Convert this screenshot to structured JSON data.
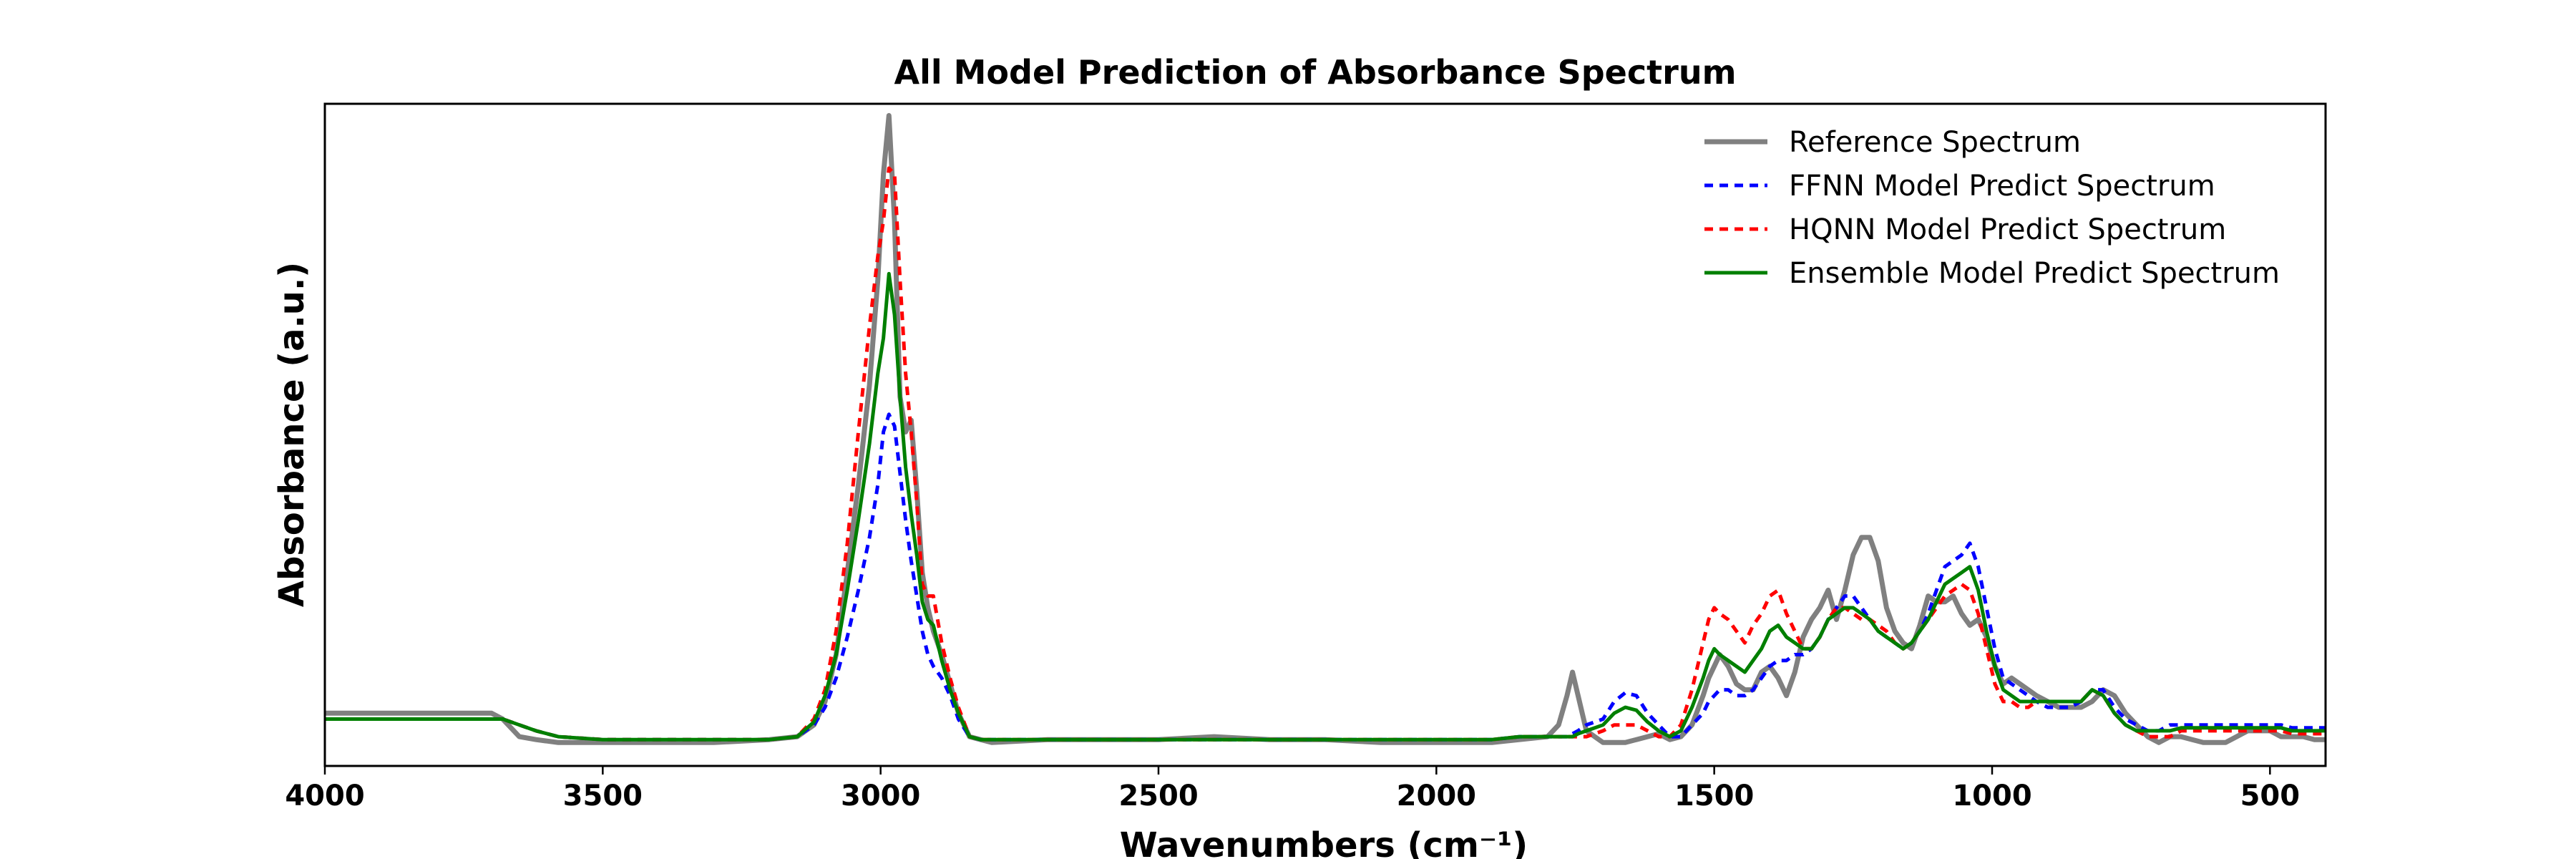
{
  "chart_data": {
    "type": "line",
    "title": "All Model Prediction of Absorbance Spectrum",
    "xlabel": "Wavenumbers (cm⁻¹)",
    "ylabel": "Absorbance (a.u.)",
    "xlim": [
      4000,
      400
    ],
    "x_inverted": true,
    "ylim": [
      -0.05,
      1.08
    ],
    "y_ticks_shown": false,
    "x_ticks": [
      4000,
      3500,
      3000,
      2500,
      2000,
      1500,
      1000,
      500
    ],
    "x_tick_labels": [
      "4000",
      "3500",
      "3000",
      "2500",
      "2000",
      "1500",
      "1000",
      "500"
    ],
    "grid": false,
    "legend": {
      "position": "top-right",
      "entries": [
        "Reference Spectrum",
        "FFNN Model Predict Spectrum",
        "HQNN Model Predict Spectrum",
        "Ensemble Model Predict Spectrum"
      ]
    },
    "series": [
      {
        "name": "Reference Spectrum",
        "color": "#808080",
        "style": "solid",
        "x": [
          4000,
          3900,
          3800,
          3700,
          3680,
          3650,
          3620,
          3580,
          3500,
          3400,
          3300,
          3200,
          3150,
          3120,
          3100,
          3080,
          3060,
          3040,
          3020,
          3005,
          2995,
          2985,
          2975,
          2965,
          2955,
          2945,
          2935,
          2925,
          2915,
          2905,
          2890,
          2875,
          2860,
          2840,
          2820,
          2800,
          2700,
          2600,
          2500,
          2400,
          2300,
          2200,
          2100,
          2000,
          1900,
          1850,
          1800,
          1780,
          1765,
          1755,
          1745,
          1730,
          1700,
          1680,
          1660,
          1640,
          1620,
          1600,
          1580,
          1560,
          1540,
          1520,
          1510,
          1500,
          1490,
          1475,
          1460,
          1445,
          1430,
          1415,
          1400,
          1385,
          1370,
          1355,
          1340,
          1325,
          1310,
          1295,
          1280,
          1265,
          1250,
          1235,
          1220,
          1205,
          1190,
          1175,
          1160,
          1145,
          1130,
          1115,
          1100,
          1085,
          1070,
          1055,
          1040,
          1025,
          1010,
          995,
          980,
          965,
          950,
          935,
          920,
          900,
          880,
          860,
          840,
          820,
          800,
          780,
          760,
          740,
          720,
          700,
          680,
          660,
          640,
          620,
          600,
          580,
          560,
          540,
          520,
          500,
          480,
          460,
          440,
          420,
          400
        ],
        "values": [
          0.04,
          0.04,
          0.04,
          0.04,
          0.03,
          0.0,
          -0.005,
          -0.01,
          -0.01,
          -0.01,
          -0.01,
          -0.005,
          0.0,
          0.02,
          0.06,
          0.14,
          0.28,
          0.43,
          0.6,
          0.78,
          0.96,
          1.06,
          0.88,
          0.58,
          0.52,
          0.54,
          0.42,
          0.28,
          0.22,
          0.18,
          0.14,
          0.09,
          0.04,
          0.0,
          -0.005,
          -0.01,
          -0.005,
          -0.005,
          -0.005,
          0.0,
          -0.005,
          -0.005,
          -0.01,
          -0.01,
          -0.01,
          -0.005,
          0.0,
          0.02,
          0.07,
          0.11,
          0.07,
          0.01,
          -0.01,
          -0.01,
          -0.01,
          -0.005,
          0.0,
          0.005,
          -0.005,
          0.0,
          0.02,
          0.07,
          0.1,
          0.12,
          0.14,
          0.12,
          0.09,
          0.08,
          0.08,
          0.11,
          0.12,
          0.1,
          0.07,
          0.11,
          0.17,
          0.2,
          0.22,
          0.25,
          0.2,
          0.25,
          0.31,
          0.34,
          0.34,
          0.3,
          0.22,
          0.18,
          0.16,
          0.15,
          0.19,
          0.24,
          0.23,
          0.23,
          0.24,
          0.21,
          0.19,
          0.2,
          0.17,
          0.12,
          0.09,
          0.1,
          0.09,
          0.08,
          0.07,
          0.06,
          0.05,
          0.05,
          0.05,
          0.06,
          0.08,
          0.07,
          0.04,
          0.02,
          0.0,
          -0.01,
          0.0,
          0.0,
          -0.005,
          -0.01,
          -0.01,
          -0.01,
          0.0,
          0.01,
          0.01,
          0.01,
          0.0,
          0.0,
          0.0,
          -0.005,
          -0.005
        ]
      },
      {
        "name": "FFNN Model Predict Spectrum",
        "color": "#0000ff",
        "style": "dashed",
        "x": [
          4000,
          3900,
          3800,
          3700,
          3680,
          3650,
          3620,
          3580,
          3500,
          3400,
          3300,
          3200,
          3150,
          3120,
          3100,
          3080,
          3060,
          3040,
          3020,
          3005,
          2995,
          2985,
          2975,
          2965,
          2955,
          2945,
          2935,
          2925,
          2915,
          2905,
          2890,
          2875,
          2860,
          2840,
          2820,
          2800,
          2700,
          2600,
          2500,
          2400,
          2300,
          2200,
          2100,
          2000,
          1900,
          1850,
          1800,
          1780,
          1765,
          1755,
          1745,
          1730,
          1700,
          1680,
          1660,
          1640,
          1620,
          1600,
          1580,
          1560,
          1540,
          1520,
          1510,
          1500,
          1490,
          1475,
          1460,
          1445,
          1430,
          1415,
          1400,
          1385,
          1370,
          1355,
          1340,
          1325,
          1310,
          1295,
          1280,
          1265,
          1250,
          1235,
          1220,
          1205,
          1190,
          1175,
          1160,
          1145,
          1130,
          1115,
          1100,
          1085,
          1070,
          1055,
          1040,
          1025,
          1010,
          995,
          980,
          965,
          950,
          935,
          920,
          900,
          880,
          860,
          840,
          820,
          800,
          780,
          760,
          740,
          720,
          700,
          680,
          660,
          640,
          620,
          600,
          580,
          560,
          540,
          520,
          500,
          480,
          460,
          440,
          420,
          400
        ],
        "values": [
          0.03,
          0.03,
          0.03,
          0.03,
          0.03,
          0.02,
          0.01,
          0.0,
          -0.005,
          -0.005,
          -0.005,
          -0.005,
          0.0,
          0.02,
          0.05,
          0.1,
          0.17,
          0.25,
          0.34,
          0.43,
          0.52,
          0.55,
          0.53,
          0.45,
          0.37,
          0.3,
          0.24,
          0.18,
          0.14,
          0.12,
          0.1,
          0.07,
          0.03,
          0.0,
          -0.005,
          -0.005,
          -0.005,
          -0.005,
          -0.005,
          -0.005,
          -0.005,
          -0.005,
          -0.005,
          -0.005,
          -0.005,
          0.0,
          0.0,
          0.0,
          0.0,
          0.005,
          0.01,
          0.02,
          0.03,
          0.06,
          0.075,
          0.07,
          0.04,
          0.02,
          0.0,
          0.0,
          0.02,
          0.04,
          0.06,
          0.07,
          0.08,
          0.08,
          0.07,
          0.07,
          0.08,
          0.1,
          0.12,
          0.13,
          0.13,
          0.14,
          0.14,
          0.15,
          0.17,
          0.2,
          0.22,
          0.24,
          0.24,
          0.22,
          0.2,
          0.18,
          0.17,
          0.16,
          0.15,
          0.16,
          0.18,
          0.21,
          0.25,
          0.29,
          0.3,
          0.31,
          0.33,
          0.29,
          0.22,
          0.15,
          0.1,
          0.09,
          0.08,
          0.07,
          0.06,
          0.05,
          0.05,
          0.05,
          0.06,
          0.08,
          0.08,
          0.05,
          0.03,
          0.02,
          0.01,
          0.01,
          0.02,
          0.02,
          0.02,
          0.02,
          0.02,
          0.02,
          0.02,
          0.02,
          0.02,
          0.02,
          0.02,
          0.015,
          0.015,
          0.015,
          0.015
        ]
      },
      {
        "name": "HQNN Model Predict Spectrum",
        "color": "#ff0000",
        "style": "dashed",
        "x": [
          4000,
          3900,
          3800,
          3700,
          3680,
          3650,
          3620,
          3580,
          3500,
          3400,
          3300,
          3200,
          3150,
          3120,
          3100,
          3080,
          3060,
          3040,
          3020,
          3005,
          2995,
          2985,
          2975,
          2965,
          2955,
          2945,
          2935,
          2925,
          2915,
          2905,
          2890,
          2875,
          2860,
          2840,
          2820,
          2800,
          2700,
          2600,
          2500,
          2400,
          2300,
          2200,
          2100,
          2000,
          1900,
          1850,
          1800,
          1780,
          1765,
          1755,
          1745,
          1730,
          1700,
          1680,
          1660,
          1640,
          1620,
          1600,
          1580,
          1560,
          1540,
          1520,
          1510,
          1500,
          1490,
          1475,
          1460,
          1445,
          1430,
          1415,
          1400,
          1385,
          1370,
          1355,
          1340,
          1325,
          1310,
          1295,
          1280,
          1265,
          1250,
          1235,
          1220,
          1205,
          1190,
          1175,
          1160,
          1145,
          1130,
          1115,
          1100,
          1085,
          1070,
          1055,
          1040,
          1025,
          1010,
          995,
          980,
          965,
          950,
          935,
          920,
          900,
          880,
          860,
          840,
          820,
          800,
          780,
          760,
          740,
          720,
          700,
          680,
          660,
          640,
          620,
          600,
          580,
          560,
          540,
          520,
          500,
          480,
          460,
          440,
          420,
          400
        ],
        "values": [
          0.03,
          0.03,
          0.03,
          0.03,
          0.03,
          0.02,
          0.01,
          0.0,
          -0.005,
          -0.005,
          -0.005,
          -0.005,
          0.0,
          0.03,
          0.08,
          0.18,
          0.33,
          0.52,
          0.7,
          0.82,
          0.88,
          0.97,
          0.96,
          0.78,
          0.62,
          0.52,
          0.4,
          0.26,
          0.24,
          0.24,
          0.16,
          0.1,
          0.05,
          0.0,
          -0.005,
          -0.005,
          -0.005,
          -0.005,
          -0.005,
          -0.005,
          -0.005,
          -0.005,
          -0.005,
          -0.005,
          -0.005,
          0.0,
          0.0,
          0.0,
          0.0,
          0.0,
          0.0,
          0.0,
          0.01,
          0.02,
          0.02,
          0.02,
          0.01,
          0.0,
          0.0,
          0.02,
          0.08,
          0.16,
          0.2,
          0.22,
          0.21,
          0.2,
          0.18,
          0.16,
          0.19,
          0.21,
          0.24,
          0.25,
          0.21,
          0.18,
          0.15,
          0.15,
          0.17,
          0.2,
          0.22,
          0.22,
          0.21,
          0.2,
          0.2,
          0.19,
          0.18,
          0.16,
          0.15,
          0.16,
          0.18,
          0.2,
          0.22,
          0.24,
          0.25,
          0.26,
          0.25,
          0.21,
          0.15,
          0.09,
          0.06,
          0.06,
          0.05,
          0.05,
          0.06,
          0.06,
          0.06,
          0.06,
          0.06,
          0.08,
          0.07,
          0.04,
          0.02,
          0.01,
          0.0,
          0.0,
          0.0,
          0.01,
          0.01,
          0.01,
          0.01,
          0.01,
          0.01,
          0.01,
          0.01,
          0.01,
          0.01,
          0.005,
          0.005,
          0.005,
          0.005
        ]
      },
      {
        "name": "Ensemble Model Predict Spectrum",
        "color": "#007f00",
        "style": "solid",
        "x": [
          4000,
          3900,
          3800,
          3700,
          3680,
          3650,
          3620,
          3580,
          3500,
          3400,
          3300,
          3200,
          3150,
          3120,
          3100,
          3080,
          3060,
          3040,
          3020,
          3005,
          2995,
          2985,
          2975,
          2965,
          2955,
          2945,
          2935,
          2925,
          2915,
          2905,
          2890,
          2875,
          2860,
          2840,
          2820,
          2800,
          2700,
          2600,
          2500,
          2400,
          2300,
          2200,
          2100,
          2000,
          1900,
          1850,
          1800,
          1780,
          1765,
          1755,
          1745,
          1730,
          1700,
          1680,
          1660,
          1640,
          1620,
          1600,
          1580,
          1560,
          1540,
          1520,
          1510,
          1500,
          1490,
          1475,
          1460,
          1445,
          1430,
          1415,
          1400,
          1385,
          1370,
          1355,
          1340,
          1325,
          1310,
          1295,
          1280,
          1265,
          1250,
          1235,
          1220,
          1205,
          1190,
          1175,
          1160,
          1145,
          1130,
          1115,
          1100,
          1085,
          1070,
          1055,
          1040,
          1025,
          1010,
          995,
          980,
          965,
          950,
          935,
          920,
          900,
          880,
          860,
          840,
          820,
          800,
          780,
          760,
          740,
          720,
          700,
          680,
          660,
          640,
          620,
          600,
          580,
          560,
          540,
          520,
          500,
          480,
          460,
          440,
          420,
          400
        ],
        "values": [
          0.03,
          0.03,
          0.03,
          0.03,
          0.03,
          0.02,
          0.01,
          0.0,
          -0.005,
          -0.005,
          -0.005,
          -0.005,
          0.0,
          0.025,
          0.07,
          0.14,
          0.25,
          0.37,
          0.5,
          0.62,
          0.68,
          0.79,
          0.72,
          0.58,
          0.46,
          0.38,
          0.31,
          0.23,
          0.2,
          0.19,
          0.13,
          0.08,
          0.04,
          0.0,
          -0.005,
          -0.005,
          -0.005,
          -0.005,
          -0.005,
          -0.005,
          -0.005,
          -0.005,
          -0.005,
          -0.005,
          -0.005,
          0.0,
          0.0,
          0.0,
          0.0,
          0.0,
          0.005,
          0.01,
          0.02,
          0.04,
          0.05,
          0.045,
          0.025,
          0.01,
          0.0,
          0.01,
          0.05,
          0.1,
          0.13,
          0.15,
          0.14,
          0.13,
          0.12,
          0.11,
          0.13,
          0.15,
          0.18,
          0.19,
          0.17,
          0.16,
          0.15,
          0.15,
          0.17,
          0.2,
          0.21,
          0.22,
          0.22,
          0.21,
          0.2,
          0.18,
          0.17,
          0.16,
          0.15,
          0.16,
          0.18,
          0.2,
          0.23,
          0.26,
          0.27,
          0.28,
          0.29,
          0.25,
          0.18,
          0.12,
          0.08,
          0.07,
          0.06,
          0.06,
          0.06,
          0.06,
          0.06,
          0.06,
          0.06,
          0.08,
          0.07,
          0.04,
          0.02,
          0.01,
          0.01,
          0.01,
          0.01,
          0.015,
          0.015,
          0.015,
          0.015,
          0.015,
          0.015,
          0.015,
          0.015,
          0.015,
          0.015,
          0.01,
          0.01,
          0.01,
          0.01
        ]
      }
    ]
  }
}
